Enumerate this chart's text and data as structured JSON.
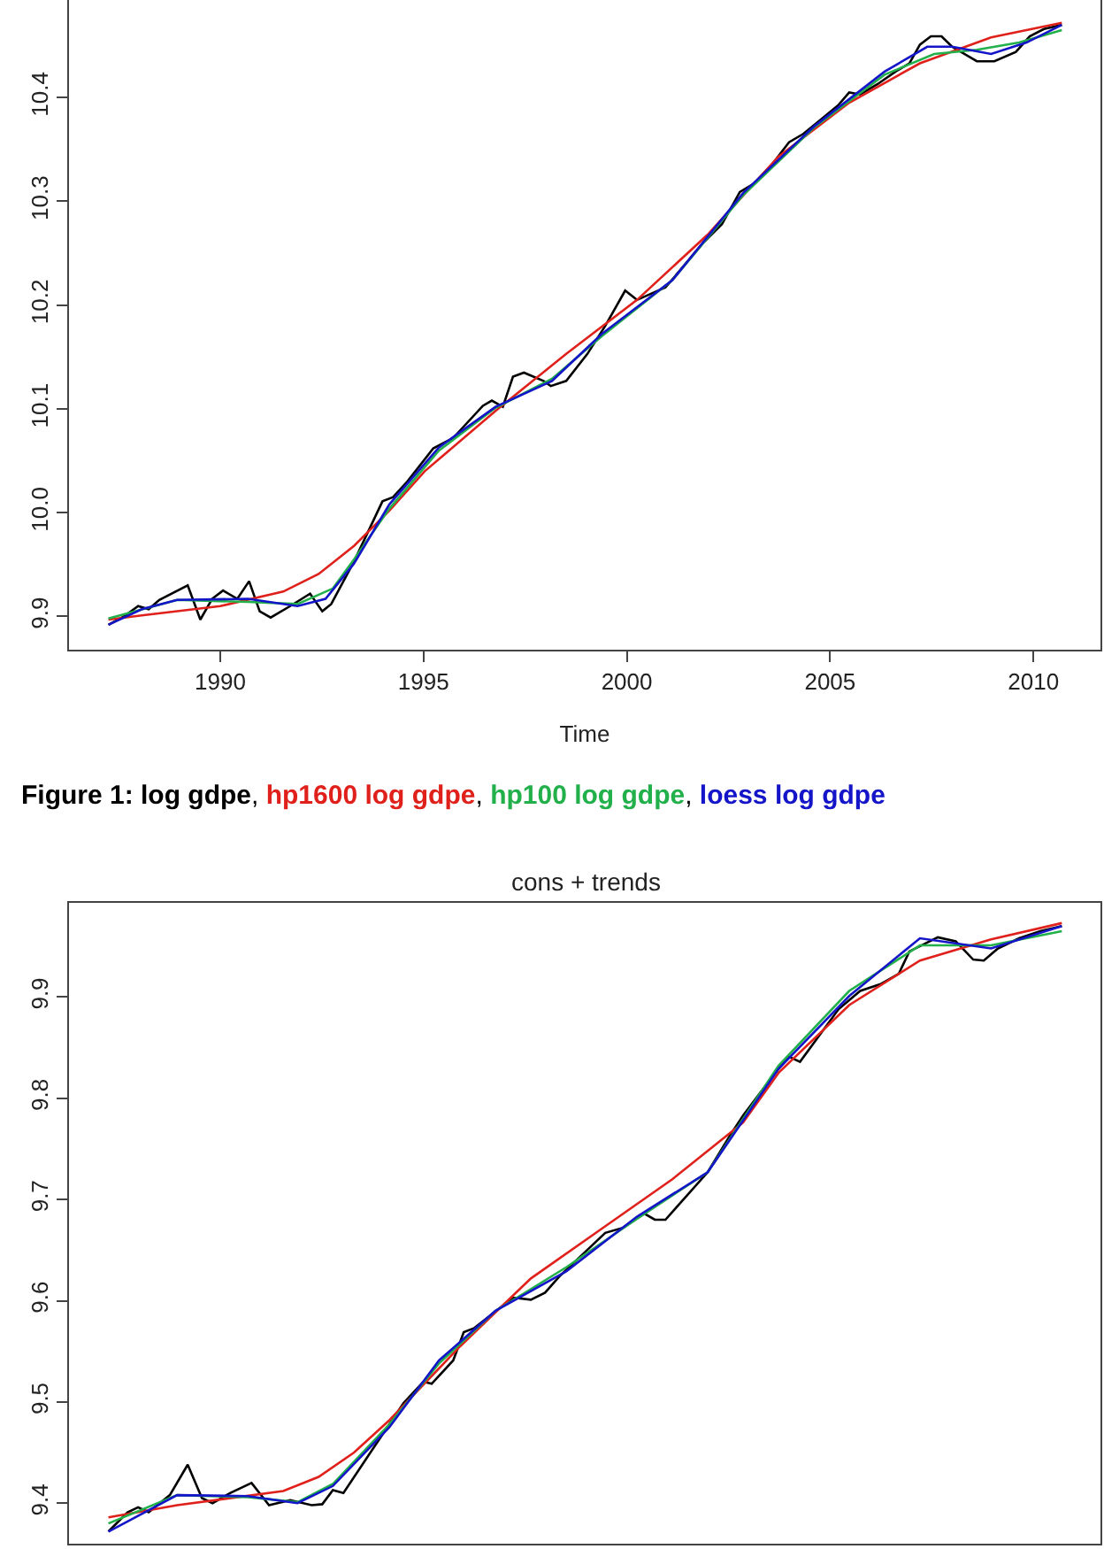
{
  "chart_data": [
    {
      "type": "line",
      "xlabel": "Time",
      "annotations": [
        "Figure 1:",
        ","
      ],
      "xlim": [
        1986.28,
        2011.65
      ],
      "ylim": [
        9.868,
        10.494
      ],
      "xticks": [
        1990,
        1995,
        2000,
        2005,
        2010
      ],
      "yticks": [
        {
          "value": 9.9,
          "label": "9.9"
        },
        {
          "value": 10.0,
          "label": "10.0"
        },
        {
          "value": 10.1,
          "label": "10.1"
        },
        {
          "value": 10.2,
          "label": "10.2"
        },
        {
          "value": 10.3,
          "label": "10.3"
        },
        {
          "value": 10.4,
          "label": "10.4"
        }
      ],
      "grid": false,
      "legend": false,
      "marker": "none",
      "line_style": "solid",
      "series": [
        {
          "name": "log gdpe",
          "color": "#000000",
          "x": [
            1987.25,
            1987.63,
            1987.98,
            1988.24,
            1988.5,
            1989.2,
            1989.51,
            1989.8,
            1990.07,
            1990.42,
            1990.71,
            1990.97,
            1991.24,
            1991.72,
            1992.21,
            1992.51,
            1992.73,
            1993.29,
            1993.99,
            1994.25,
            1994.6,
            1995.24,
            1995.73,
            1996.46,
            1996.68,
            1996.95,
            1997.2,
            1997.47,
            1997.95,
            1998.13,
            1998.51,
            1999.03,
            1999.47,
            1999.96,
            2000.25,
            2000.95,
            2001.47,
            2001.9,
            2002.34,
            2002.78,
            2003.12,
            2003.56,
            2003.99,
            2004.34,
            2004.78,
            2005.21,
            2005.47,
            2005.74,
            2006.17,
            2006.61,
            2006.95,
            2007.21,
            2007.48,
            2007.74,
            2008.0,
            2008.61,
            2009.04,
            2009.57,
            2009.91,
            2010.26,
            2010.7
          ],
          "values": [
            9.892,
            9.9,
            9.91,
            9.907,
            9.916,
            9.93,
            9.897,
            9.917,
            9.925,
            9.917,
            9.934,
            9.905,
            9.899,
            9.91,
            9.922,
            9.905,
            9.912,
            9.953,
            10.011,
            10.015,
            10.03,
            10.062,
            10.072,
            10.103,
            10.108,
            10.102,
            10.131,
            10.135,
            10.127,
            10.122,
            10.127,
            10.153,
            10.18,
            10.214,
            10.205,
            10.217,
            10.241,
            10.261,
            10.278,
            10.309,
            10.317,
            10.335,
            10.357,
            10.365,
            10.379,
            10.393,
            10.405,
            10.403,
            10.413,
            10.425,
            10.433,
            10.451,
            10.459,
            10.459,
            10.449,
            10.435,
            10.435,
            10.444,
            10.459,
            10.466,
            10.47
          ]
        },
        {
          "name": "hp1600 log gdpe",
          "color": "#e0201b",
          "x": [
            1987.25,
            1988.07,
            1990.0,
            1991.55,
            1992.42,
            1993.29,
            1994.16,
            1995.03,
            1996.77,
            1998.51,
            2000.25,
            2001.99,
            2003.73,
            2005.47,
            2007.21,
            2008.96,
            2010.7
          ],
          "values": [
            9.897,
            9.901,
            9.91,
            9.924,
            9.941,
            9.968,
            10.002,
            10.04,
            10.098,
            10.153,
            10.205,
            10.268,
            10.343,
            10.395,
            10.433,
            10.458,
            10.472
          ]
        },
        {
          "name": "hp100 log gdpe",
          "color": "#22b04b",
          "x": [
            1987.25,
            1988.94,
            1990.68,
            1991.9,
            1992.77,
            1993.29,
            1994.16,
            1995.38,
            1996.77,
            1998.16,
            1999.38,
            2001.12,
            2002.86,
            2004.6,
            2006.34,
            2007.56,
            2008.61,
            2009.65,
            2010.7
          ],
          "values": [
            9.898,
            9.916,
            9.914,
            9.912,
            9.927,
            9.955,
            10.004,
            10.06,
            10.101,
            10.129,
            10.17,
            10.224,
            10.306,
            10.371,
            10.422,
            10.442,
            10.446,
            10.453,
            10.465
          ]
        },
        {
          "name": "loess log gdpe",
          "color": "#1414c8",
          "x": [
            1987.25,
            1988.07,
            1988.94,
            1990.68,
            1991.9,
            1992.59,
            1993.29,
            1994.16,
            1995.38,
            1996.77,
            1998.16,
            1999.38,
            2001.12,
            2002.86,
            2004.6,
            2006.34,
            2007.39,
            2008.0,
            2008.96,
            2009.83,
            2010.7
          ],
          "values": [
            9.892,
            9.907,
            9.916,
            9.917,
            9.91,
            9.917,
            9.951,
            10.008,
            10.063,
            10.102,
            10.127,
            10.172,
            10.224,
            10.308,
            10.372,
            10.425,
            10.449,
            10.449,
            10.442,
            10.453,
            10.47
          ]
        }
      ]
    },
    {
      "type": "line",
      "title": "cons + trends",
      "xlim": [
        1986.28,
        2011.65
      ],
      "ylim": [
        9.36,
        9.993
      ],
      "yticks": [
        9.4,
        9.5,
        9.6,
        9.7,
        9.8,
        9.9
      ],
      "tick_labels": "y",
      "grid": false,
      "legend": false,
      "marker": "none",
      "line_style": "solid",
      "series": [
        {
          "color": "#000000",
          "x": [
            1987.25,
            1987.72,
            1987.98,
            1988.24,
            1988.76,
            1989.2,
            1989.55,
            1989.81,
            1990.24,
            1990.77,
            1991.2,
            1991.72,
            1992.25,
            1992.51,
            1992.77,
            1993.03,
            1993.81,
            1994.51,
            1995.0,
            1995.2,
            1995.73,
            1995.99,
            1996.25,
            1997.2,
            1997.64,
            1997.99,
            1998.34,
            1999.47,
            1999.9,
            2000.43,
            2000.69,
            2000.95,
            2001.99,
            2002.52,
            2002.86,
            2003.65,
            2003.99,
            2004.26,
            2005.21,
            2005.74,
            2006.26,
            2006.69,
            2006.95,
            2007.65,
            2008.09,
            2008.52,
            2008.78,
            2009.13,
            2009.65,
            2010.17,
            2010.7
          ],
          "values": [
            9.372,
            9.391,
            9.396,
            9.391,
            9.408,
            9.438,
            9.405,
            9.4,
            9.41,
            9.42,
            9.398,
            9.403,
            9.398,
            9.399,
            9.413,
            9.41,
            9.457,
            9.499,
            9.52,
            9.518,
            9.541,
            9.569,
            9.573,
            9.603,
            9.601,
            9.608,
            9.624,
            9.667,
            9.672,
            9.686,
            9.68,
            9.68,
            9.727,
            9.762,
            9.783,
            9.825,
            9.841,
            9.836,
            9.888,
            9.906,
            9.913,
            9.923,
            9.945,
            9.959,
            9.955,
            9.937,
            9.936,
            9.948,
            9.958,
            9.965,
            9.97
          ]
        },
        {
          "color": "#e0201b",
          "x": [
            1987.25,
            1988.94,
            1991.55,
            1992.42,
            1993.29,
            1994.16,
            1995.9,
            1997.64,
            1999.38,
            2001.12,
            2002.86,
            2003.73,
            2005.47,
            2007.21,
            2008.96,
            2010.7
          ],
          "values": [
            9.386,
            9.398,
            9.412,
            9.426,
            9.45,
            9.482,
            9.555,
            9.622,
            9.671,
            9.72,
            9.776,
            9.825,
            9.892,
            9.936,
            9.957,
            9.973
          ]
        },
        {
          "color": "#22b04b",
          "x": [
            1987.25,
            1988.94,
            1990.68,
            1991.9,
            1992.77,
            1994.16,
            1995.38,
            1996.77,
            1998.51,
            2000.25,
            2001.99,
            2003.73,
            2005.47,
            2007.21,
            2008.96,
            2010.7
          ],
          "values": [
            9.38,
            9.408,
            9.406,
            9.401,
            9.419,
            9.478,
            9.538,
            9.59,
            9.633,
            9.681,
            9.727,
            9.832,
            9.906,
            9.951,
            9.951,
            9.965
          ]
        },
        {
          "color": "#1414c8",
          "x": [
            1987.25,
            1988.94,
            1990.68,
            1991.9,
            1992.77,
            1994.16,
            1995.38,
            1996.77,
            1998.51,
            2000.25,
            2001.99,
            2003.73,
            2005.47,
            2007.21,
            2008.96,
            2010.7
          ],
          "values": [
            9.372,
            9.408,
            9.407,
            9.4,
            9.417,
            9.475,
            9.541,
            9.59,
            9.629,
            9.683,
            9.727,
            9.829,
            9.901,
            9.958,
            9.948,
            9.97
          ]
        }
      ]
    }
  ]
}
